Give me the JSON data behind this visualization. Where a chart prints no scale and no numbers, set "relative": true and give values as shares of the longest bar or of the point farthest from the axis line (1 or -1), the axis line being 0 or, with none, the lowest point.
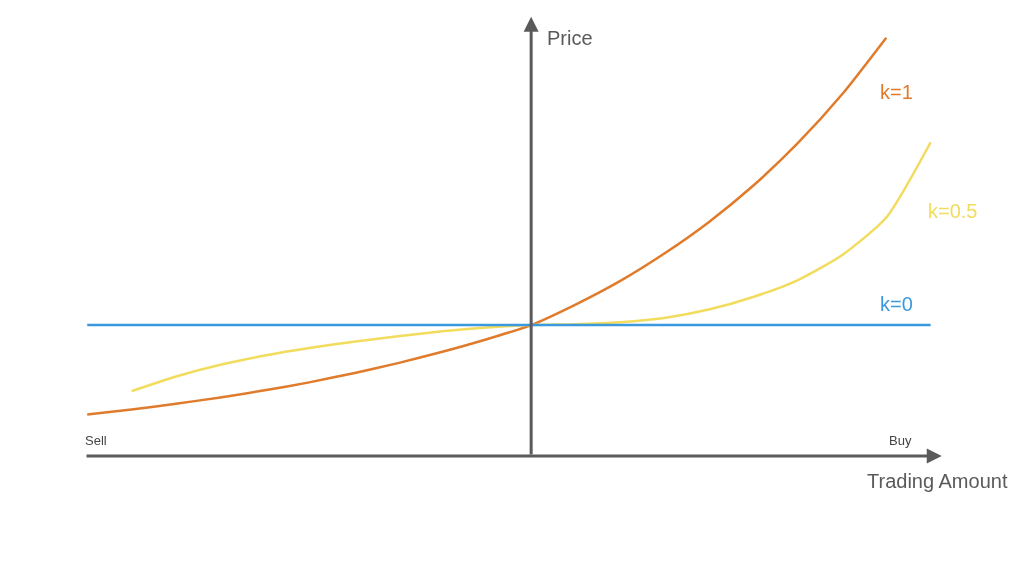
{
  "chart_data": {
    "type": "line",
    "relative": true,
    "xlabel": "Trading Amount",
    "ylabel": "Price",
    "annotations": [
      "Sell",
      "Buy"
    ],
    "legend": false,
    "marker": "none",
    "line_style": "solid",
    "categories": [
      null,
      null,
      null,
      null,
      null,
      null,
      null,
      null,
      null,
      null,
      null,
      null,
      null,
      null,
      null,
      null,
      null,
      null,
      null,
      null
    ],
    "series": [
      {
        "name": "k=1",
        "color": "#e07b2c",
        "values": [
          0.099,
          0.111,
          0.125,
          0.14,
          0.157,
          0.176,
          0.198,
          0.222,
          0.249,
          0.279,
          0.313,
          0.362,
          0.418,
          0.484,
          0.559,
          0.646,
          0.747,
          0.864,
          1.0,
          null
        ]
      },
      {
        "name": "k=0.5",
        "color": "#f2dc5d",
        "values": [
          null,
          0.155,
          0.19,
          0.218,
          0.24,
          0.258,
          0.273,
          0.286,
          0.298,
          0.307,
          0.313,
          0.315,
          0.32,
          0.33,
          0.35,
          0.38,
          0.42,
          0.48,
          0.57,
          0.75
        ]
      },
      {
        "name": "k=0",
        "color": "#3b99e0",
        "values": [
          0.313,
          0.313,
          0.313,
          0.313,
          0.313,
          0.313,
          0.313,
          0.313,
          0.313,
          0.313,
          0.313,
          0.313,
          0.313,
          0.313,
          0.313,
          0.313,
          0.313,
          0.313,
          0.313,
          0.313
        ]
      }
    ]
  }
}
